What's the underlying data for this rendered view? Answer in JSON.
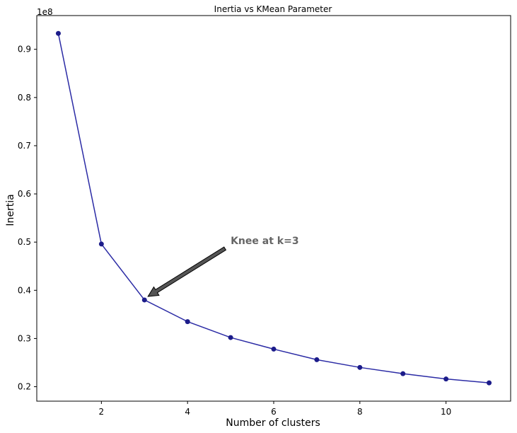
{
  "chart_data": {
    "type": "line",
    "title": "Inertia vs KMean Parameter",
    "xlabel": "Number of clusters",
    "ylabel": "Inertia",
    "y_offset_label": "1e8",
    "x": [
      1,
      2,
      3,
      4,
      5,
      6,
      7,
      8,
      9,
      10,
      11
    ],
    "series": [
      {
        "values": [
          0.933,
          0.496,
          0.38,
          0.335,
          0.302,
          0.278,
          0.256,
          0.24,
          0.227,
          0.216,
          0.208
        ],
        "color": "#2b2ba5",
        "marker_color": "#1c1c8a"
      }
    ],
    "xlim": [
      0.5,
      11.5
    ],
    "ylim": [
      0.17,
      0.97
    ],
    "x_ticks": [
      2,
      4,
      6,
      8,
      10
    ],
    "x_tick_labels": [
      "2",
      "4",
      "6",
      "8",
      "10"
    ],
    "y_ticks": [
      0.2,
      0.3,
      0.4,
      0.5,
      0.6,
      0.7,
      0.8,
      0.9
    ],
    "y_tick_labels": [
      "0.2",
      "0.3",
      "0.4",
      "0.5",
      "0.6",
      "0.7",
      "0.8",
      "0.9"
    ],
    "grid": false,
    "annotation": {
      "text": "Knee at k=3",
      "xy": [
        3,
        0.38
      ],
      "xytext": [
        5,
        0.5
      ],
      "color": "#666666",
      "arrow_color": "#555555"
    }
  }
}
